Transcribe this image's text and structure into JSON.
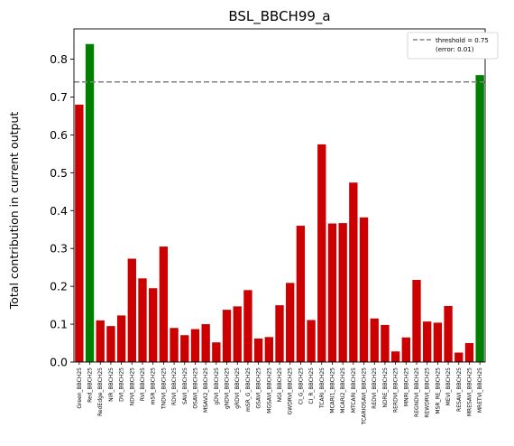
{
  "chart_data": {
    "type": "bar",
    "title": "BSL_BBCH99_a",
    "xlabel": "",
    "ylabel": "Total contribution in current output",
    "ylim": [
      0,
      0.88
    ],
    "yticks": [
      0.0,
      0.1,
      0.2,
      0.3,
      0.4,
      0.5,
      0.6,
      0.7,
      0.8
    ],
    "ytick_labels": [
      "0.0",
      "0.1",
      "0.2",
      "0.3",
      "0.4",
      "0.5",
      "0.6",
      "0.7",
      "0.8"
    ],
    "grid": false,
    "legend_position": "top-right",
    "threshold": {
      "value": 0.74,
      "label_line1": "threshold = 0.75",
      "label_line2": "(error: 0.01)",
      "color": "#808080"
    },
    "colors": {
      "default": "#cc0000",
      "highlight": "#008000"
    },
    "categories": [
      "Green_BBCH25",
      "Red_BBCH25",
      "RedEdge_BBCH25",
      "NIR_BBCH25",
      "DVI_BBCH25",
      "NDVI_BBCH25",
      "RVI_BBCH25",
      "mSR_BBCH25",
      "TNDVI_BBCH25",
      "RDVI_BBCH25",
      "SAVI_BBCH25",
      "OSAVI_BBCH25",
      "MSAVI2_BBCH25",
      "gDVI_BBCH25",
      "gNDVI_BBCH25",
      "gRDVI_BBCH25",
      "mSR_G_BBCH25",
      "GSAVI_BBCH25",
      "MGSAVI_BBCH25",
      "NGI_BBCH25",
      "GWDRVI_BBCH25",
      "CI_G_BBCH25",
      "CI_R_BBCH25",
      "TCARI_BBCH25",
      "MCARI1_BBCH25",
      "MCARI2_BBCH25",
      "MTCARI_BBCH25",
      "TCARIOSAVI_BBCH25",
      "REDVI_BBCH25",
      "NDRE_BBCH25",
      "RERDVI_BBCH25",
      "MNRI_BBCH25",
      "REGNDVI_BBCH25",
      "REWDRVI_BBCH25",
      "MSR_RE_BBCH25",
      "MEVI_BBCH25",
      "RESAVI_BBCH25",
      "MRESAVI_BBCH25",
      "MRETVI_BBCH25"
    ],
    "values": [
      0.68,
      0.84,
      0.11,
      0.095,
      0.123,
      0.273,
      0.221,
      0.195,
      0.305,
      0.09,
      0.071,
      0.087,
      0.1,
      0.052,
      0.138,
      0.147,
      0.19,
      0.062,
      0.066,
      0.15,
      0.209,
      0.36,
      0.111,
      0.575,
      0.366,
      0.367,
      0.474,
      0.382,
      0.115,
      0.098,
      0.028,
      0.065,
      0.217,
      0.107,
      0.104,
      0.148,
      0.025,
      0.05,
      0.758
    ],
    "highlight_indices": [
      1,
      38
    ]
  }
}
